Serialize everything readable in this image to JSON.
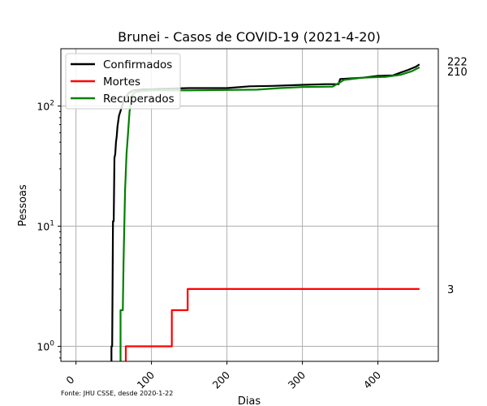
{
  "chart_data": {
    "type": "line",
    "title": "Brunei - Casos de COVID-19 (2021-4-20)",
    "xlabel": "Dias",
    "ylabel": "Pessoas",
    "source": "Fonte: JHU CSSE, desde 2020-1-22",
    "y_scale": "log",
    "xlim": [
      -20,
      480
    ],
    "ylim": [
      0.75,
      300
    ],
    "x_ticks": [
      0,
      100,
      200,
      300,
      400
    ],
    "y_ticks": [
      {
        "value": 1,
        "base": "10",
        "exp": "0"
      },
      {
        "value": 10,
        "base": "10",
        "exp": "1"
      },
      {
        "value": 100,
        "base": "10",
        "exp": "2"
      }
    ],
    "grid": true,
    "legend_position": "top-left",
    "series": [
      {
        "name": "Confirmados",
        "color": "#000000",
        "end_label": "222",
        "points": [
          [
            47,
            0.7
          ],
          [
            47,
            1
          ],
          [
            48,
            1
          ],
          [
            49,
            11
          ],
          [
            50,
            11
          ],
          [
            51,
            37
          ],
          [
            52,
            40
          ],
          [
            53,
            50
          ],
          [
            54,
            56
          ],
          [
            55,
            68
          ],
          [
            57,
            83
          ],
          [
            59,
            91
          ],
          [
            61,
            100
          ],
          [
            63,
            109
          ],
          [
            65,
            115
          ],
          [
            67,
            120
          ],
          [
            69,
            127
          ],
          [
            72,
            131
          ],
          [
            76,
            135
          ],
          [
            80,
            136
          ],
          [
            90,
            138
          ],
          [
            100,
            138
          ],
          [
            110,
            139
          ],
          [
            150,
            141
          ],
          [
            200,
            141
          ],
          [
            230,
            146
          ],
          [
            260,
            147
          ],
          [
            300,
            150
          ],
          [
            330,
            152
          ],
          [
            348,
            152
          ],
          [
            350,
            168
          ],
          [
            380,
            172
          ],
          [
            400,
            178
          ],
          [
            420,
            180
          ],
          [
            430,
            190
          ],
          [
            440,
            200
          ],
          [
            450,
            212
          ],
          [
            455,
            222
          ]
        ]
      },
      {
        "name": "Mortes",
        "color": "#ff0000",
        "end_label": "3",
        "points": [
          [
            66,
            0.7
          ],
          [
            66,
            1
          ],
          [
            127,
            1
          ],
          [
            127,
            2
          ],
          [
            148,
            2
          ],
          [
            148,
            3
          ],
          [
            455,
            3
          ]
        ]
      },
      {
        "name": "Recuperados",
        "color": "#008000",
        "end_label": "210",
        "points": [
          [
            59,
            0.7
          ],
          [
            59,
            2
          ],
          [
            62,
            2
          ],
          [
            63,
            5
          ],
          [
            65,
            20
          ],
          [
            67,
            40
          ],
          [
            69,
            60
          ],
          [
            71,
            90
          ],
          [
            73,
            110
          ],
          [
            75,
            125
          ],
          [
            78,
            130
          ],
          [
            85,
            133
          ],
          [
            100,
            135
          ],
          [
            150,
            135
          ],
          [
            200,
            136
          ],
          [
            240,
            137
          ],
          [
            270,
            141
          ],
          [
            300,
            144
          ],
          [
            340,
            145
          ],
          [
            355,
            165
          ],
          [
            380,
            172
          ],
          [
            410,
            175
          ],
          [
            430,
            182
          ],
          [
            445,
            195
          ],
          [
            455,
            210
          ]
        ]
      }
    ]
  }
}
